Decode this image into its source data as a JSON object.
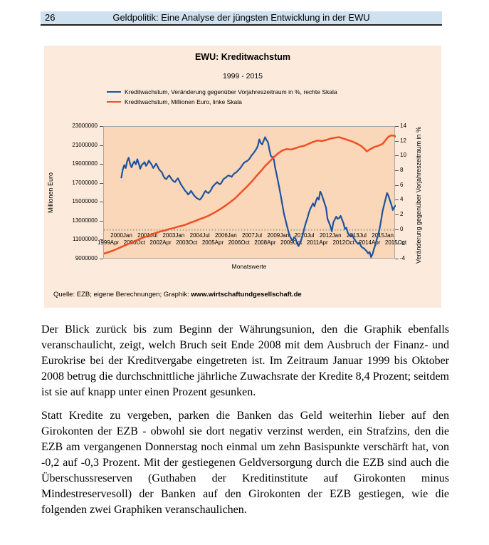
{
  "header": {
    "page_number": "26",
    "title": "Geldpolitik: Eine Analyse der jüngsten Entwicklung in der EWU"
  },
  "colors": {
    "header_bar_bg": "#cfe1ee",
    "header_border": "#1f1f1f",
    "panel_bg": "#fcebdc",
    "plot_bg": "#f9d7b8",
    "plot_border": "#a8a8a8",
    "growth_line_blue": "#1f529e",
    "volume_line_orange": "#f04f23",
    "zero_line": "#b3ab9e"
  },
  "figure": {
    "source_prefix": "Quelle: EZB; eigene Berechnungen; Graphik: ",
    "source_url": "www.wirtschaftundgesellschaft.de"
  },
  "chart_data": {
    "type": "line",
    "title": "EWU: Kreditwachstum",
    "subtitle": "1999 - 2015",
    "x_axis_label": "Monatswerte",
    "x_month_max": 201,
    "legend_position": "top-left",
    "grid": "off",
    "left_axis": {
      "title": "Millionen Euro",
      "min": 9000000,
      "max": 23000000,
      "step": 2000000
    },
    "right_axis": {
      "title": "Veränderung gegenüber Vorjahreszeitraum in %",
      "min": -4,
      "max": 14,
      "step": 2
    },
    "zero_line_axis": "right",
    "x_tick_rows": {
      "upper": [
        [
          12,
          "2000Jan"
        ],
        [
          30,
          "2001Jul"
        ],
        [
          48,
          "2003Jan"
        ],
        [
          66,
          "2004Jul"
        ],
        [
          84,
          "2006Jan"
        ],
        [
          102,
          "2007Jul"
        ],
        [
          120,
          "2009Jan"
        ],
        [
          138,
          "2010Jul"
        ],
        [
          156,
          "2012Jan"
        ],
        [
          174,
          "2013Jul"
        ],
        [
          192,
          "2015Jan"
        ]
      ],
      "lower": [
        [
          3,
          "1999Apr"
        ],
        [
          21,
          "2000Oct"
        ],
        [
          39,
          "2002Apr"
        ],
        [
          57,
          "2003Oct"
        ],
        [
          75,
          "2005Apr"
        ],
        [
          93,
          "2006Oct"
        ],
        [
          111,
          "2008Apr"
        ],
        [
          129,
          "2009Oct"
        ],
        [
          147,
          "2011Apr"
        ],
        [
          165,
          "2012Oct"
        ],
        [
          183,
          "2014Apr"
        ],
        [
          201,
          "2015Oct"
        ]
      ]
    },
    "series": [
      {
        "name": "Kreditwachstum, Veränderung gegenüber Vorjahreszeitraum in %, rechte Skala",
        "axis": "right",
        "color": "#1f529e",
        "width": 2.2,
        "points": [
          [
            12,
            7.1
          ],
          [
            13,
            8.2
          ],
          [
            14,
            8.8
          ],
          [
            15,
            8.4
          ],
          [
            16,
            9.3
          ],
          [
            17,
            9.8
          ],
          [
            18,
            9.0
          ],
          [
            19,
            8.5
          ],
          [
            20,
            9.0
          ],
          [
            21,
            9.3
          ],
          [
            22,
            8.9
          ],
          [
            23,
            9.6
          ],
          [
            24,
            9.0
          ],
          [
            25,
            8.3
          ],
          [
            26,
            8.8
          ],
          [
            27,
            9.0
          ],
          [
            28,
            9.2
          ],
          [
            29,
            8.7
          ],
          [
            30,
            9.0
          ],
          [
            31,
            9.4
          ],
          [
            32,
            9.1
          ],
          [
            33,
            8.8
          ],
          [
            34,
            8.4
          ],
          [
            35,
            8.7
          ],
          [
            36,
            9.0
          ],
          [
            37,
            8.6
          ],
          [
            38,
            8.2
          ],
          [
            39,
            8.0
          ],
          [
            40,
            7.8
          ],
          [
            41,
            7.3
          ],
          [
            42,
            7.0
          ],
          [
            43,
            6.9
          ],
          [
            44,
            7.2
          ],
          [
            45,
            7.4
          ],
          [
            46,
            7.1
          ],
          [
            47,
            6.8
          ],
          [
            48,
            6.6
          ],
          [
            49,
            6.5
          ],
          [
            50,
            6.8
          ],
          [
            51,
            7.0
          ],
          [
            52,
            6.6
          ],
          [
            53,
            6.2
          ],
          [
            54,
            5.9
          ],
          [
            55,
            5.6
          ],
          [
            56,
            5.3
          ],
          [
            57,
            5.1
          ],
          [
            58,
            4.8
          ],
          [
            59,
            5.0
          ],
          [
            60,
            5.3
          ],
          [
            61,
            5.0
          ],
          [
            62,
            4.7
          ],
          [
            63,
            4.5
          ],
          [
            64,
            4.3
          ],
          [
            65,
            4.2
          ],
          [
            66,
            4.1
          ],
          [
            67,
            4.3
          ],
          [
            68,
            4.6
          ],
          [
            69,
            5.0
          ],
          [
            70,
            5.3
          ],
          [
            71,
            5.1
          ],
          [
            72,
            5.0
          ],
          [
            73,
            5.2
          ],
          [
            74,
            5.5
          ],
          [
            75,
            5.9
          ],
          [
            76,
            6.1
          ],
          [
            77,
            6.3
          ],
          [
            78,
            6.5
          ],
          [
            79,
            6.3
          ],
          [
            80,
            6.2
          ],
          [
            81,
            6.4
          ],
          [
            82,
            6.8
          ],
          [
            83,
            7.0
          ],
          [
            84,
            7.1
          ],
          [
            85,
            7.3
          ],
          [
            86,
            7.4
          ],
          [
            87,
            7.3
          ],
          [
            88,
            7.2
          ],
          [
            89,
            7.5
          ],
          [
            90,
            7.7
          ],
          [
            91,
            7.8
          ],
          [
            92,
            8.0
          ],
          [
            93,
            8.2
          ],
          [
            94,
            8.4
          ],
          [
            95,
            8.7
          ],
          [
            96,
            9.0
          ],
          [
            97,
            9.2
          ],
          [
            98,
            9.3
          ],
          [
            99,
            9.4
          ],
          [
            100,
            9.6
          ],
          [
            101,
            9.9
          ],
          [
            102,
            10.2
          ],
          [
            103,
            10.4
          ],
          [
            104,
            10.7
          ],
          [
            105,
            11.0
          ],
          [
            106,
            11.4
          ],
          [
            107,
            12.3
          ],
          [
            108,
            11.8
          ],
          [
            109,
            11.6
          ],
          [
            110,
            12.1
          ],
          [
            111,
            12.6
          ],
          [
            112,
            12.2
          ],
          [
            113,
            11.9
          ],
          [
            114,
            10.9
          ],
          [
            115,
            10.0
          ],
          [
            116,
            9.9
          ],
          [
            117,
            9.6
          ],
          [
            118,
            8.4
          ],
          [
            119,
            7.5
          ],
          [
            120,
            6.5
          ],
          [
            121,
            5.5
          ],
          [
            122,
            4.4
          ],
          [
            123,
            3.3
          ],
          [
            124,
            2.2
          ],
          [
            125,
            1.4
          ],
          [
            126,
            0.6
          ],
          [
            127,
            -0.2
          ],
          [
            128,
            -0.8
          ],
          [
            129,
            -1.2
          ],
          [
            130,
            -1.5
          ],
          [
            131,
            -1.0
          ],
          [
            132,
            -1.2
          ],
          [
            133,
            -1.8
          ],
          [
            134,
            -2.2
          ],
          [
            135,
            -1.8
          ],
          [
            136,
            -1.3
          ],
          [
            137,
            -0.6
          ],
          [
            138,
            0.2
          ],
          [
            139,
            0.9
          ],
          [
            140,
            1.5
          ],
          [
            141,
            2.2
          ],
          [
            142,
            2.8
          ],
          [
            143,
            3.2
          ],
          [
            144,
            3.6
          ],
          [
            145,
            3.2
          ],
          [
            146,
            3.9
          ],
          [
            147,
            4.4
          ],
          [
            148,
            4.1
          ],
          [
            149,
            5.2
          ],
          [
            150,
            4.8
          ],
          [
            151,
            4.2
          ],
          [
            152,
            3.6
          ],
          [
            153,
            3.0
          ],
          [
            154,
            1.5
          ],
          [
            155,
            1.0
          ],
          [
            156,
            0.5
          ],
          [
            157,
            -0.2
          ],
          [
            158,
            1.0
          ],
          [
            159,
            1.4
          ],
          [
            160,
            1.8
          ],
          [
            161,
            1.5
          ],
          [
            162,
            1.6
          ],
          [
            163,
            1.9
          ],
          [
            164,
            1.4
          ],
          [
            165,
            0.9
          ],
          [
            166,
            0.1
          ],
          [
            167,
            0.3
          ],
          [
            168,
            -0.4
          ],
          [
            169,
            -0.7
          ],
          [
            170,
            -0.9
          ],
          [
            171,
            -0.6
          ],
          [
            172,
            -1.1
          ],
          [
            173,
            -1.4
          ],
          [
            174,
            -1.7
          ],
          [
            175,
            -1.9
          ],
          [
            176,
            -1.7
          ],
          [
            177,
            -2.2
          ],
          [
            178,
            -2.4
          ],
          [
            179,
            -2.5
          ],
          [
            180,
            -2.7
          ],
          [
            181,
            -2.9
          ],
          [
            182,
            -3.2
          ],
          [
            183,
            -3.0
          ],
          [
            184,
            -3.7
          ],
          [
            185,
            -3.3
          ],
          [
            186,
            -2.6
          ],
          [
            187,
            -2.0
          ],
          [
            188,
            -1.2
          ],
          [
            189,
            -0.6
          ],
          [
            190,
            0.3
          ],
          [
            191,
            1.4
          ],
          [
            192,
            2.6
          ],
          [
            193,
            3.4
          ],
          [
            194,
            4.2
          ],
          [
            195,
            5.0
          ],
          [
            196,
            4.6
          ],
          [
            197,
            4.0
          ],
          [
            198,
            3.4
          ],
          [
            199,
            2.7
          ],
          [
            200,
            3.1
          ],
          [
            201,
            3.3
          ]
        ]
      },
      {
        "name": "Kreditwachstum, Millionen Euro, linke Skala",
        "axis": "left",
        "color": "#f04f23",
        "width": 2.5,
        "points": [
          [
            0,
            9600000
          ],
          [
            3,
            9750000
          ],
          [
            6,
            9900000
          ],
          [
            9,
            10100000
          ],
          [
            12,
            10300000
          ],
          [
            15,
            10500000
          ],
          [
            18,
            10700000
          ],
          [
            21,
            10900000
          ],
          [
            24,
            11100000
          ],
          [
            27,
            11300000
          ],
          [
            30,
            11450000
          ],
          [
            33,
            11650000
          ],
          [
            36,
            11800000
          ],
          [
            39,
            11950000
          ],
          [
            42,
            12050000
          ],
          [
            45,
            12200000
          ],
          [
            48,
            12300000
          ],
          [
            51,
            12450000
          ],
          [
            54,
            12550000
          ],
          [
            57,
            12700000
          ],
          [
            60,
            12900000
          ],
          [
            63,
            13050000
          ],
          [
            66,
            13250000
          ],
          [
            69,
            13400000
          ],
          [
            72,
            13600000
          ],
          [
            75,
            13850000
          ],
          [
            78,
            14100000
          ],
          [
            81,
            14400000
          ],
          [
            84,
            14700000
          ],
          [
            87,
            15050000
          ],
          [
            90,
            15400000
          ],
          [
            93,
            15850000
          ],
          [
            96,
            16300000
          ],
          [
            99,
            16750000
          ],
          [
            102,
            17250000
          ],
          [
            105,
            17800000
          ],
          [
            108,
            18300000
          ],
          [
            111,
            18850000
          ],
          [
            114,
            19300000
          ],
          [
            117,
            19800000
          ],
          [
            120,
            20200000
          ],
          [
            123,
            20500000
          ],
          [
            126,
            20650000
          ],
          [
            129,
            20600000
          ],
          [
            132,
            20750000
          ],
          [
            135,
            20900000
          ],
          [
            138,
            21000000
          ],
          [
            141,
            21200000
          ],
          [
            144,
            21400000
          ],
          [
            147,
            21550000
          ],
          [
            150,
            21500000
          ],
          [
            153,
            21600000
          ],
          [
            156,
            21750000
          ],
          [
            159,
            21850000
          ],
          [
            162,
            21900000
          ],
          [
            165,
            21750000
          ],
          [
            168,
            21600000
          ],
          [
            171,
            21450000
          ],
          [
            174,
            21250000
          ],
          [
            177,
            21000000
          ],
          [
            180,
            20600000
          ],
          [
            181,
            20400000
          ],
          [
            183,
            20600000
          ],
          [
            186,
            20850000
          ],
          [
            189,
            21000000
          ],
          [
            192,
            21200000
          ],
          [
            194,
            21600000
          ],
          [
            196,
            21950000
          ],
          [
            198,
            22100000
          ],
          [
            200,
            22050000
          ],
          [
            201,
            21950000
          ]
        ]
      }
    ]
  },
  "paragraphs": [
    "Der Blick zurück bis zum Beginn der Währungsunion, den die Graphik ebenfalls veranschaulicht, zeigt, welch Bruch seit Ende 2008 mit dem Ausbruch der Finanz- und Eurokrise bei der Kreditvergabe eingetreten ist. Im Zeitraum Januar 1999 bis Oktober 2008 betrug die durchschnittliche jährliche Zuwachsrate der Kredite 8,4 Prozent; seitdem ist sie auf knapp unter einen Prozent gesunken.",
    "Statt Kredite zu vergeben, parken die Banken das Geld weiterhin lieber auf den Girokonten der EZB - obwohl sie dort negativ verzinst werden, ein Strafzins, den die EZB am vergangenen Donnerstag noch einmal um zehn Basispunkte verschärft hat, von -0,2 auf -0,3 Prozent. Mit der gestiegenen Geldversorgung durch die EZB sind auch die Überschussreserven (Guthaben der Kreditinstitute auf Girokonten minus Mindestreservesoll) der Banken auf den Girokonten der EZB gestiegen, wie die folgenden zwei Graphiken veranschaulichen."
  ]
}
